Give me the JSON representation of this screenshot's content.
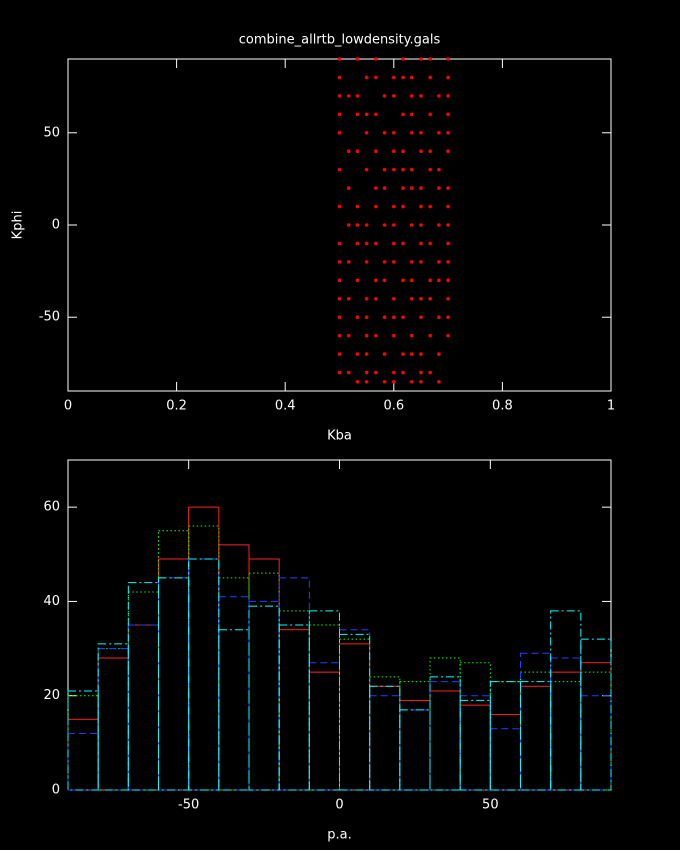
{
  "chart_data": [
    {
      "type": "scatter",
      "title": "combine_allrtb_lowdensity.gals",
      "xlabel": "Kba",
      "ylabel": "Kphi",
      "color": "#ff0000",
      "xlim": [
        0,
        1
      ],
      "xticks": [
        0,
        0.2,
        0.4,
        0.6,
        0.8,
        1
      ],
      "ylim": [
        -90,
        90
      ],
      "yticks": [
        -50,
        0,
        50
      ],
      "x": [
        0.5,
        0.533,
        0.567,
        0.617,
        0.65,
        0.667,
        0.7,
        0.5,
        0.55,
        0.567,
        0.6,
        0.617,
        0.633,
        0.667,
        0.7,
        0.5,
        0.517,
        0.533,
        0.583,
        0.6,
        0.633,
        0.65,
        0.683,
        0.7,
        0.5,
        0.533,
        0.55,
        0.567,
        0.617,
        0.633,
        0.667,
        0.7,
        0.5,
        0.55,
        0.583,
        0.6,
        0.633,
        0.65,
        0.683,
        0.7,
        0.517,
        0.533,
        0.567,
        0.6,
        0.617,
        0.65,
        0.667,
        0.7,
        0.5,
        0.55,
        0.583,
        0.6,
        0.617,
        0.633,
        0.667,
        0.683,
        0.517,
        0.567,
        0.583,
        0.617,
        0.633,
        0.65,
        0.683,
        0.7,
        0.5,
        0.533,
        0.567,
        0.6,
        0.617,
        0.65,
        0.667,
        0.7,
        0.517,
        0.533,
        0.55,
        0.583,
        0.6,
        0.633,
        0.65,
        0.683,
        0.7,
        0.5,
        0.533,
        0.55,
        0.567,
        0.6,
        0.617,
        0.65,
        0.667,
        0.7,
        0.5,
        0.517,
        0.55,
        0.583,
        0.6,
        0.633,
        0.65,
        0.683,
        0.7,
        0.5,
        0.533,
        0.567,
        0.583,
        0.617,
        0.633,
        0.667,
        0.683,
        0.7,
        0.5,
        0.517,
        0.55,
        0.567,
        0.6,
        0.633,
        0.65,
        0.667,
        0.7,
        0.5,
        0.533,
        0.55,
        0.583,
        0.6,
        0.617,
        0.65,
        0.683,
        0.7,
        0.5,
        0.517,
        0.55,
        0.567,
        0.6,
        0.633,
        0.667,
        0.7,
        0.5,
        0.533,
        0.55,
        0.583,
        0.617,
        0.633,
        0.65,
        0.683,
        0.5,
        0.517,
        0.55,
        0.567,
        0.6,
        0.617,
        0.65,
        0.667,
        0.533,
        0.55,
        0.583,
        0.6,
        0.633,
        0.65,
        0.683
      ],
      "values": [
        90,
        90,
        90,
        90,
        90,
        90,
        90,
        80,
        80,
        80,
        80,
        80,
        80,
        80,
        80,
        70,
        70,
        70,
        70,
        70,
        70,
        70,
        70,
        70,
        60,
        60,
        60,
        60,
        60,
        60,
        60,
        60,
        50,
        50,
        50,
        50,
        50,
        50,
        50,
        50,
        40,
        40,
        40,
        40,
        40,
        40,
        40,
        40,
        30,
        30,
        30,
        30,
        30,
        30,
        30,
        30,
        20,
        20,
        20,
        20,
        20,
        20,
        20,
        20,
        10,
        10,
        10,
        10,
        10,
        10,
        10,
        10,
        0,
        0,
        0,
        0,
        0,
        0,
        0,
        0,
        0,
        -10,
        -10,
        -10,
        -10,
        -10,
        -10,
        -10,
        -10,
        -10,
        -20,
        -20,
        -20,
        -20,
        -20,
        -20,
        -20,
        -20,
        -20,
        -30,
        -30,
        -30,
        -30,
        -30,
        -30,
        -30,
        -30,
        -30,
        -40,
        -40,
        -40,
        -40,
        -40,
        -40,
        -40,
        -40,
        -40,
        -50,
        -50,
        -50,
        -50,
        -50,
        -50,
        -50,
        -50,
        -50,
        -60,
        -60,
        -60,
        -60,
        -60,
        -60,
        -60,
        -60,
        -70,
        -70,
        -70,
        -70,
        -70,
        -70,
        -70,
        -70,
        -80,
        -80,
        -80,
        -80,
        -80,
        -80,
        -80,
        -80,
        -85,
        -85,
        -85,
        -85,
        -85,
        -85,
        -85
      ]
    },
    {
      "type": "histogram",
      "xlabel": "p.a.",
      "xlim": [
        -90,
        90
      ],
      "xticks": [
        -50,
        0,
        50
      ],
      "ylim": [
        0,
        70
      ],
      "yticks": [
        0,
        20,
        40,
        60
      ],
      "bins": [
        -90,
        -80,
        -70,
        -60,
        -50,
        -40,
        -30,
        -20,
        -10,
        0,
        10,
        20,
        30,
        40,
        50,
        60,
        70,
        80,
        90
      ],
      "series": [
        {
          "color": "#ff2020",
          "linestyle": "solid",
          "values": [
            15,
            28,
            35,
            49,
            60,
            52,
            49,
            34,
            25,
            31,
            22,
            19,
            21,
            18,
            16,
            22,
            25,
            27
          ]
        },
        {
          "color": "#00ff00",
          "linestyle": "dotted",
          "values": [
            20,
            30,
            42,
            55,
            56,
            45,
            46,
            38,
            35,
            32,
            24,
            23,
            28,
            27,
            23,
            25,
            23,
            25
          ]
        },
        {
          "color": "#2040ff",
          "linestyle": "dashed",
          "values": [
            12,
            30,
            35,
            45,
            49,
            41,
            40,
            45,
            27,
            34,
            20,
            17,
            23,
            20,
            13,
            29,
            28,
            20
          ]
        },
        {
          "color": "#00ffff",
          "linestyle": "dashdot",
          "values": [
            21,
            31,
            44,
            45,
            49,
            34,
            39,
            35,
            38,
            33,
            22,
            17,
            24,
            19,
            23,
            23,
            38,
            32
          ]
        }
      ]
    }
  ]
}
